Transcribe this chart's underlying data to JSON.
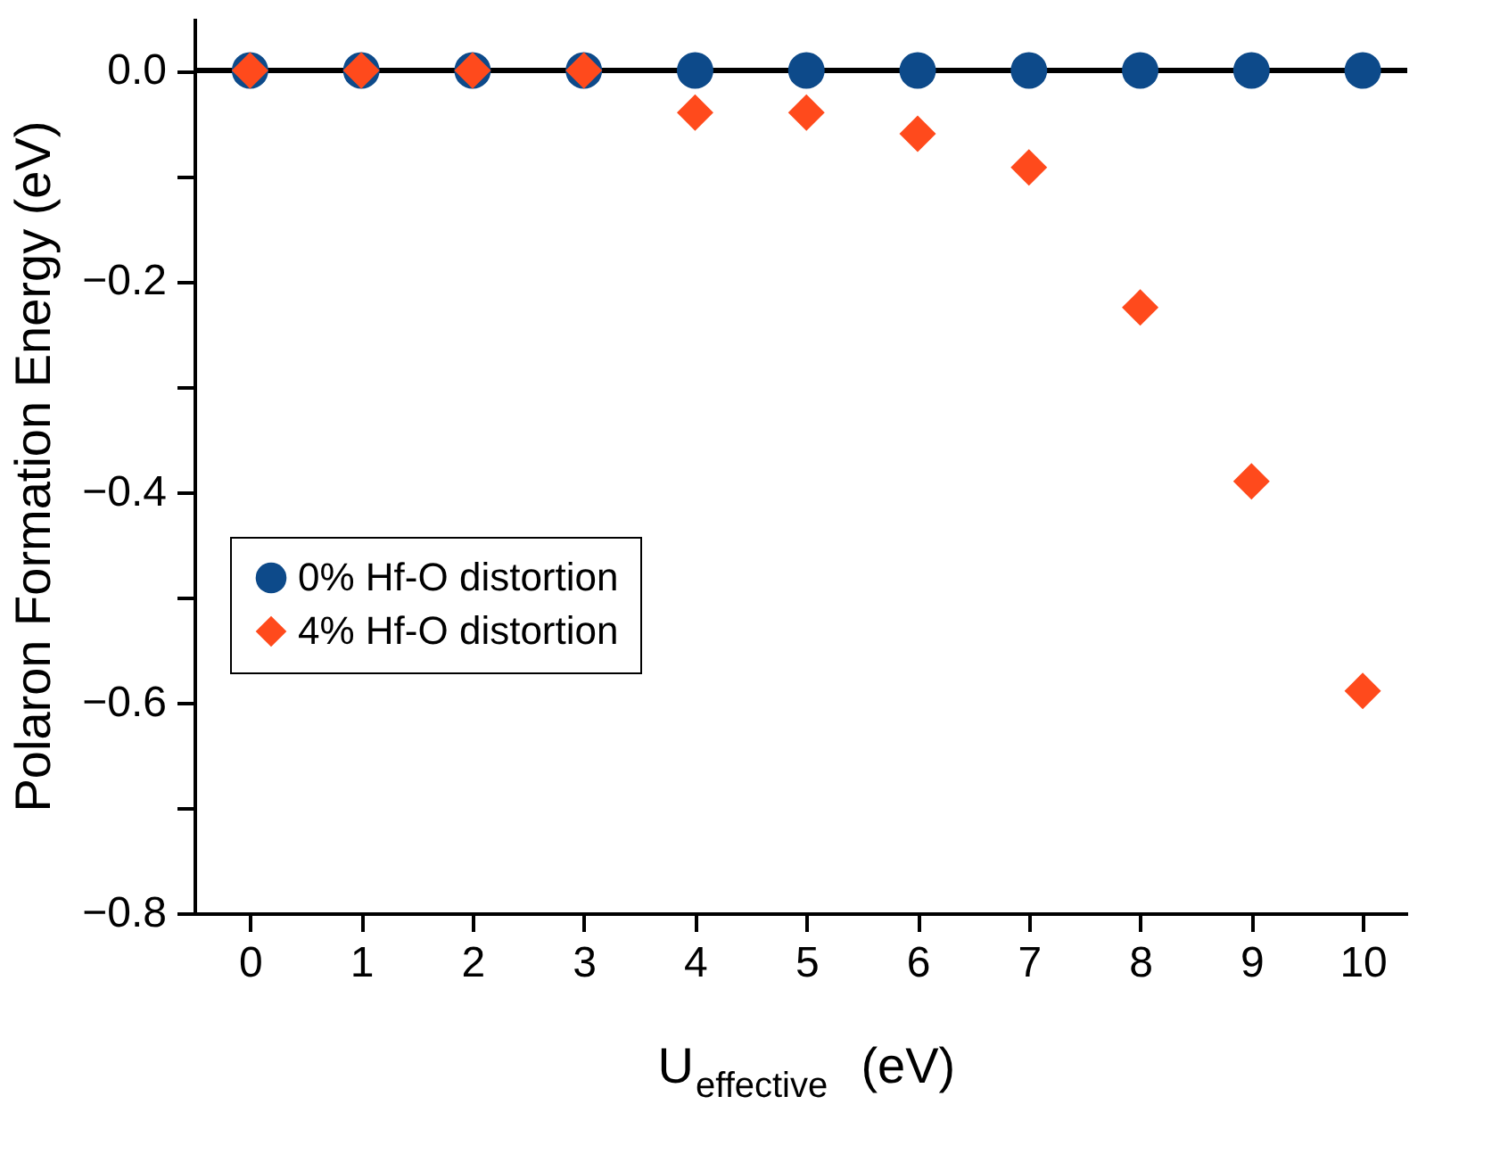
{
  "chart_data": {
    "type": "scatter",
    "xlabel": "U$_{effective}$ (eV)",
    "ylabel": "Polaron Formation Energy (eV)",
    "x": [
      0,
      1,
      2,
      3,
      4,
      5,
      6,
      7,
      8,
      9,
      10
    ],
    "series": [
      {
        "name": "0% Hf-O distortion",
        "color": "#0d4a8a",
        "marker": "circle",
        "values": [
          0,
          0,
          0,
          0,
          0,
          0,
          0,
          0,
          0,
          0,
          0
        ]
      },
      {
        "name": "4% Hf-O distortion",
        "color": "#ff4a1c",
        "marker": "diamond",
        "values": [
          0,
          0,
          0,
          0,
          -0.04,
          -0.04,
          -0.06,
          -0.092,
          -0.225,
          -0.39,
          -0.589
        ]
      }
    ],
    "xlim": [
      -0.5,
      10.4
    ],
    "xticks": [
      0,
      1,
      2,
      3,
      4,
      5,
      6,
      7,
      8,
      9,
      10
    ],
    "ylim": [
      -0.8,
      0.05
    ],
    "yticks": [
      {
        "value": 0,
        "label": "0.0"
      },
      {
        "value": -0.1,
        "label": null
      },
      {
        "value": -0.2,
        "label": "−0.2"
      },
      {
        "value": -0.3,
        "label": null
      },
      {
        "value": -0.4,
        "label": "−0.4"
      },
      {
        "value": -0.5,
        "label": null
      },
      {
        "value": -0.6,
        "label": "−0.6"
      },
      {
        "value": -0.7,
        "label": null
      },
      {
        "value": -0.8,
        "label": "−0.8"
      }
    ],
    "ref_lines": [
      {
        "axis": "y",
        "value": 0,
        "color": "#000000"
      }
    ],
    "legend": "left",
    "grid": false
  }
}
